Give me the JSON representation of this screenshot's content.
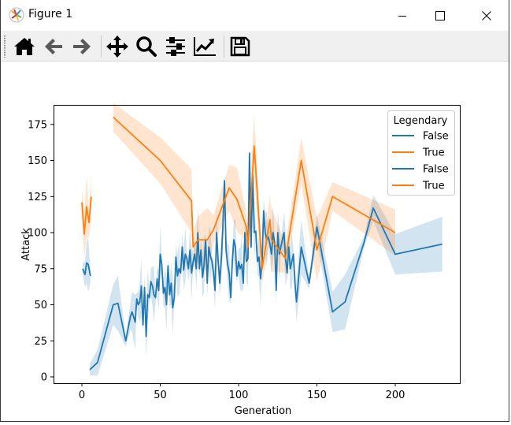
{
  "window": {
    "title": "Figure 1",
    "controls": {
      "minimize": "minimize-icon",
      "maximize": "maximize-icon",
      "close": "close-icon"
    }
  },
  "toolbar": {
    "buttons": [
      {
        "name": "home",
        "icon": "home-icon"
      },
      {
        "name": "back",
        "icon": "arrow-left-icon"
      },
      {
        "name": "forward",
        "icon": "arrow-right-icon"
      },
      {
        "name": "pan",
        "icon": "move-icon"
      },
      {
        "name": "zoom",
        "icon": "magnifier-icon"
      },
      {
        "name": "configure-subplots",
        "icon": "sliders-icon"
      },
      {
        "name": "edit-axis",
        "icon": "line-chart-icon"
      },
      {
        "name": "save",
        "icon": "floppy-disk-icon"
      }
    ]
  },
  "colors": {
    "false_series": "#1f77b4",
    "true_series": "#ff7f0e",
    "false_band": "#1f77b4",
    "true_band": "#ff7f0e"
  },
  "chart_data": {
    "type": "line",
    "title": "",
    "xlabel": "Generation",
    "ylabel": "Attack",
    "xlim": [
      -15,
      242
    ],
    "ylim": [
      -4,
      188
    ],
    "xticks": [
      0,
      50,
      100,
      150,
      200
    ],
    "yticks": [
      0,
      25,
      50,
      75,
      100,
      125,
      150,
      175
    ],
    "grid": false,
    "legend": {
      "title": "Legendary",
      "position": "upper right",
      "entries": [
        {
          "label": "False",
          "color": "#1f77b4"
        },
        {
          "label": "True",
          "color": "#ff7f0e"
        },
        {
          "label": "False",
          "color": "#1f77b4"
        },
        {
          "label": "True",
          "color": "#ff7f0e"
        }
      ]
    },
    "series": [
      {
        "name": "False",
        "color": "#1f77b4",
        "segments": [
          {
            "x": [
              0.5,
              2,
              3,
              4,
              5.5
            ],
            "y": [
              75,
              71,
              79,
              78,
              70
            ]
          },
          {
            "x": [
              5,
              10,
              20,
              23,
              28,
              31,
              32,
              34,
              35,
              36,
              37,
              38,
              39,
              40,
              41,
              42,
              43,
              44,
              45,
              46,
              47,
              48,
              49,
              50,
              51,
              52,
              53,
              54,
              55,
              56,
              57,
              58,
              59,
              60,
              61,
              62,
              63,
              64,
              65,
              66,
              67,
              68,
              69,
              70,
              71,
              72,
              73,
              74,
              75,
              76,
              77,
              78,
              79,
              80,
              81,
              82,
              83,
              84,
              85,
              86,
              87,
              88,
              89,
              90,
              91,
              92,
              93,
              94,
              95,
              96,
              97,
              98,
              99,
              100,
              101,
              102,
              103,
              104,
              105,
              106,
              107,
              108,
              109,
              110,
              111,
              112,
              113,
              114,
              115,
              116,
              117,
              118,
              119,
              120,
              121,
              122,
              123,
              124,
              125,
              126,
              127,
              128,
              129,
              130,
              131,
              132,
              133,
              134,
              135,
              136,
              137,
              140,
              145,
              150,
              160,
              168,
              180,
              186,
              200,
              230
            ],
            "y": [
              5,
              10,
              50,
              51,
              25,
              42,
              45,
              38,
              54,
              50,
              52,
              63,
              36,
              62,
              28,
              57,
              55,
              66,
              63,
              57,
              55,
              68,
              60,
              85,
              78,
              58,
              62,
              50,
              77,
              57,
              65,
              48,
              55,
              83,
              70,
              75,
              72,
              90,
              74,
              85,
              82,
              75,
              88,
              72,
              80,
              85,
              75,
              100,
              75,
              88,
              69,
              78,
              95,
              65,
              90,
              84,
              80,
              72,
              60,
              100,
              80,
              65,
              82,
              104,
              136,
              88,
              78,
              72,
              55,
              80,
              95,
              90,
              70,
              80,
              75,
              78,
              65,
              100,
              80,
              82,
              155,
              90,
              140,
              100,
              101,
              80,
              83,
              68,
              80,
              115,
              100,
              95,
              97,
              92,
              85,
              100,
              93,
              60,
              100,
              85,
              90,
              95,
              100,
              82,
              72,
              90,
              75,
              80,
              85,
              65,
              52,
              90,
              65,
              104,
              45,
              52,
              93,
              117,
              85,
              92
            ]
          }
        ]
      },
      {
        "name": "True",
        "color": "#ff7f0e",
        "segments": [
          {
            "x": [
              0,
              1.5,
              3,
              4.5,
              6
            ],
            "y": [
              121,
              99,
              118,
              107,
              125
            ]
          },
          {
            "x": [
              20,
              50,
              70,
              71,
              74,
              80,
              84,
              94,
              99,
              105,
              106,
              110,
              115,
              120,
              121,
              130,
              140,
              150,
              160,
              200
            ],
            "y": [
              180,
              150,
              122,
              90,
              95,
              95,
              102,
              131,
              123,
              104,
              90,
              160,
              75,
              109,
              95,
              82,
              150,
              88,
              125,
              100
            ]
          }
        ]
      }
    ]
  }
}
